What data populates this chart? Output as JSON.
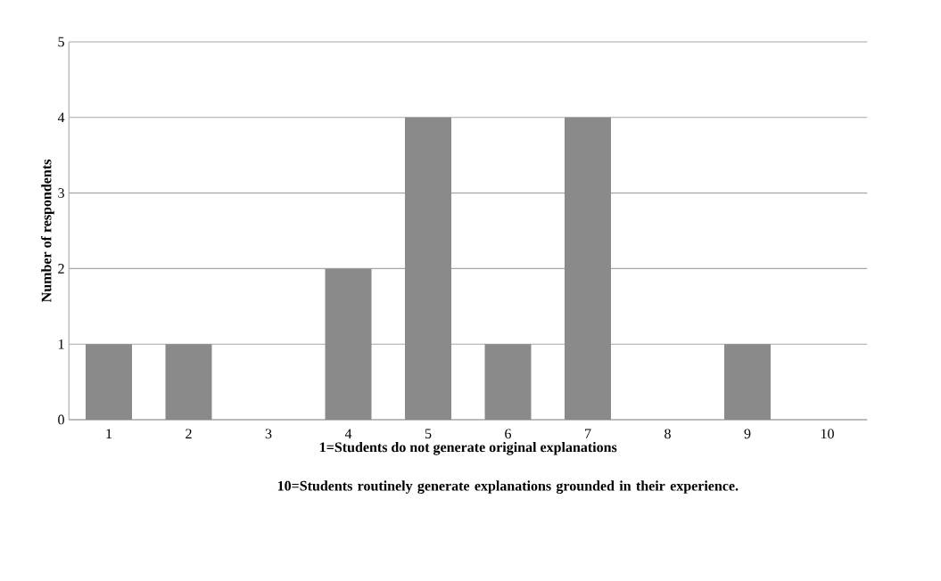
{
  "chart_data": {
    "type": "bar",
    "ylabel": "Number of respondents",
    "xlabel": "1=Students do not generate original explanations",
    "annotations": [
      "10=Students routinely generate explanations grounded in their experience."
    ],
    "categories": [
      "1",
      "2",
      "3",
      "4",
      "5",
      "6",
      "7",
      "8",
      "9",
      "10"
    ],
    "values": [
      1,
      1,
      0,
      2,
      4,
      1,
      4,
      0,
      1,
      0
    ],
    "color": "#8a8a8a",
    "ylim": [
      0,
      5
    ],
    "yticks": [
      0,
      1,
      2,
      3,
      4,
      5
    ],
    "grid": "y"
  }
}
